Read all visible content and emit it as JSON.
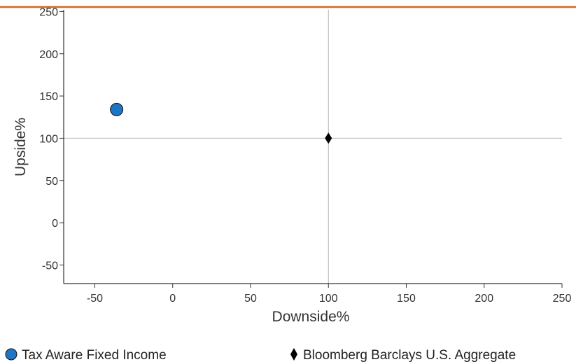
{
  "colors": {
    "top_rule": "#d2691e",
    "axis": "#333333",
    "crosshair": "#b4b4b4",
    "portfolio_fill": "#1d75c4",
    "portfolio_stroke": "#111111",
    "benchmark_fill": "#000000"
  },
  "chart_data": {
    "type": "scatter",
    "xlabel": "Downside%",
    "ylabel": "Upside%",
    "xlim": [
      -70,
      250
    ],
    "ylim": [
      -72,
      252
    ],
    "x_ticks": [
      -50,
      0,
      50,
      100,
      150,
      200,
      250
    ],
    "y_ticks": [
      -50,
      0,
      50,
      100,
      150,
      200,
      250
    ],
    "reference_lines": {
      "x": 100,
      "y": 100
    },
    "grid": false,
    "legend_position": "bottom",
    "series": [
      {
        "name": "Tax Aware Fixed Income",
        "marker": "circle",
        "x": -36,
        "y": 134
      },
      {
        "name": "Bloomberg Barclays U.S. Aggregate",
        "marker": "diamond",
        "x": 100,
        "y": 100
      }
    ]
  }
}
